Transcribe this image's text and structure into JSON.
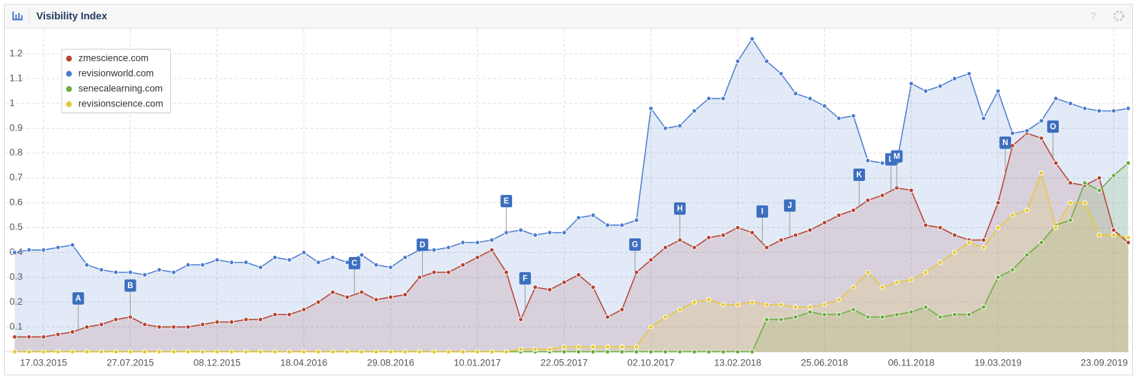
{
  "chart_data": {
    "type": "line",
    "title": "Visibility Index",
    "categories": [
      null,
      null,
      "17.03.2015",
      null,
      null,
      null,
      null,
      null,
      "27.07.2015",
      null,
      null,
      null,
      null,
      null,
      "08.12.2015",
      null,
      null,
      null,
      null,
      null,
      "18.04.2016",
      null,
      null,
      null,
      null,
      null,
      "29.08.2016",
      null,
      null,
      null,
      null,
      null,
      "10.01.2017",
      null,
      null,
      null,
      null,
      null,
      "22.05.2017",
      null,
      null,
      null,
      null,
      null,
      "02.10.2017",
      null,
      null,
      null,
      null,
      null,
      "13.02.2018",
      null,
      null,
      null,
      null,
      null,
      "25.06.2018",
      null,
      null,
      null,
      null,
      null,
      "06.11.2018",
      null,
      null,
      null,
      null,
      null,
      "19.03.2019",
      null,
      null,
      null,
      null,
      null,
      null,
      null,
      "23.09.2019",
      null
    ],
    "series": [
      {
        "name": "zmescience.com",
        "color": "#b5432f",
        "values": [
          0.06,
          0.06,
          0.06,
          0.07,
          0.08,
          0.1,
          0.11,
          0.13,
          0.14,
          0.11,
          0.1,
          0.1,
          0.1,
          0.11,
          0.12,
          0.12,
          0.13,
          0.13,
          0.15,
          0.15,
          0.17,
          0.2,
          0.24,
          0.22,
          0.24,
          0.21,
          0.22,
          0.23,
          0.3,
          0.32,
          0.32,
          0.35,
          0.38,
          0.41,
          0.32,
          0.13,
          0.26,
          0.25,
          0.28,
          0.31,
          0.26,
          0.14,
          0.17,
          0.32,
          0.37,
          0.42,
          0.45,
          0.42,
          0.46,
          0.47,
          0.5,
          0.48,
          0.42,
          0.45,
          0.47,
          0.49,
          0.52,
          0.55,
          0.57,
          0.61,
          0.63,
          0.66,
          0.65,
          0.51,
          0.5,
          0.47,
          0.45,
          0.45,
          0.6,
          0.83,
          0.88,
          0.86,
          0.76,
          0.68,
          0.67,
          0.7,
          0.49,
          0.44
        ]
      },
      {
        "name": "revisionworld.com",
        "color": "#4a7bd0",
        "values": [
          0.4,
          0.41,
          0.41,
          0.42,
          0.43,
          0.35,
          0.33,
          0.32,
          0.32,
          0.31,
          0.33,
          0.32,
          0.35,
          0.35,
          0.37,
          0.36,
          0.36,
          0.34,
          0.38,
          0.37,
          0.4,
          0.36,
          0.38,
          0.36,
          0.39,
          0.35,
          0.34,
          0.38,
          0.41,
          0.41,
          0.42,
          0.44,
          0.44,
          0.45,
          0.48,
          0.49,
          0.47,
          0.48,
          0.48,
          0.54,
          0.55,
          0.51,
          0.51,
          0.53,
          0.98,
          0.9,
          0.91,
          0.97,
          1.02,
          1.02,
          1.17,
          1.26,
          1.17,
          1.12,
          1.04,
          1.02,
          0.99,
          0.94,
          0.95,
          0.77,
          0.76,
          0.76,
          1.08,
          1.05,
          1.07,
          1.1,
          1.12,
          0.94,
          1.05,
          0.88,
          0.89,
          0.93,
          1.02,
          1.0,
          0.98,
          0.97,
          0.97,
          0.98
        ]
      },
      {
        "name": "senecalearning.com",
        "color": "#6aad3d",
        "values": [
          0,
          0,
          0,
          0,
          0,
          0,
          0,
          0,
          0,
          0,
          0,
          0,
          0,
          0,
          0,
          0,
          0,
          0,
          0,
          0,
          0,
          0,
          0,
          0,
          0,
          0,
          0,
          0,
          0,
          0,
          0,
          0,
          0,
          0,
          0,
          0,
          0,
          0,
          0,
          0,
          0,
          0,
          0,
          0,
          0,
          0,
          0,
          0,
          0,
          0,
          0,
          0,
          0.13,
          0.13,
          0.14,
          0.16,
          0.15,
          0.15,
          0.17,
          0.14,
          0.14,
          0.15,
          0.16,
          0.18,
          0.14,
          0.15,
          0.15,
          0.18,
          0.3,
          0.33,
          0.39,
          0.44,
          0.51,
          0.53,
          0.68,
          0.65,
          0.71,
          0.76
        ]
      },
      {
        "name": "revisionscience.com",
        "color": "#e8c933",
        "values": [
          0,
          0,
          0,
          0,
          0,
          0,
          0,
          0,
          0,
          0,
          0,
          0,
          0,
          0,
          0,
          0,
          0,
          0,
          0,
          0,
          0,
          0,
          0,
          0,
          0,
          0,
          0,
          0,
          0,
          0,
          0,
          0,
          0,
          0,
          0,
          0.01,
          0.01,
          0.01,
          0.02,
          0.02,
          0.02,
          0.02,
          0.02,
          0.02,
          0.1,
          0.14,
          0.17,
          0.2,
          0.21,
          0.19,
          0.19,
          0.2,
          0.19,
          0.19,
          0.18,
          0.18,
          0.19,
          0.21,
          0.26,
          0.32,
          0.26,
          0.28,
          0.29,
          0.32,
          0.36,
          0.4,
          0.44,
          0.42,
          0.5,
          0.55,
          0.57,
          0.72,
          0.5,
          0.6,
          0.6,
          0.47,
          0.47,
          0.46
        ]
      }
    ],
    "annotations": [
      "A",
      "B",
      "C",
      "D",
      "E",
      "F",
      "G",
      "H",
      "I",
      "J",
      "K",
      "L",
      "M",
      "N",
      "O"
    ],
    "ylim": [
      0,
      1.3
    ],
    "yticks": [
      0.1,
      0.2,
      0.3,
      0.4,
      0.5,
      0.6,
      0.7,
      0.8,
      0.9,
      1,
      1.1,
      1.2
    ],
    "grid": true,
    "legend": "top-left"
  }
}
